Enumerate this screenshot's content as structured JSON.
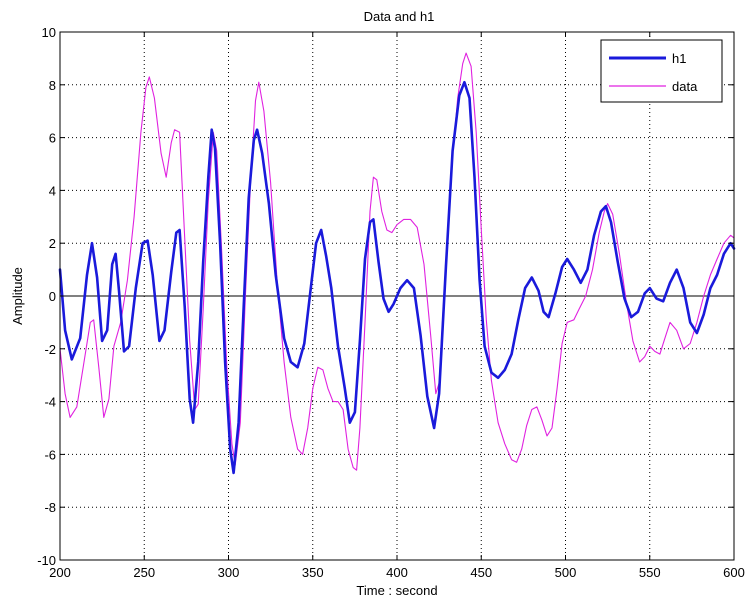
{
  "chart_data": {
    "type": "line",
    "title": "Data and h1",
    "xlabel": "Time : second",
    "ylabel": "Amplitude",
    "xlim": [
      200,
      600
    ],
    "ylim": [
      -10,
      10
    ],
    "xticks": [
      200,
      250,
      300,
      350,
      400,
      450,
      500,
      550,
      600
    ],
    "yticks": [
      -10,
      -8,
      -6,
      -4,
      -2,
      0,
      2,
      4,
      6,
      8,
      10
    ],
    "grid": true,
    "legend_position": "top-right",
    "zero_line": true,
    "series": [
      {
        "name": "h1",
        "color": "#1a1adb",
        "points": [
          [
            200,
            1.0
          ],
          [
            203,
            -1.3
          ],
          [
            207,
            -2.4
          ],
          [
            212,
            -1.6
          ],
          [
            216,
            0.8
          ],
          [
            219,
            2.0
          ],
          [
            222,
            0.7
          ],
          [
            225,
            -1.7
          ],
          [
            228,
            -1.3
          ],
          [
            231,
            1.2
          ],
          [
            233,
            1.6
          ],
          [
            235,
            0.2
          ],
          [
            238,
            -2.1
          ],
          [
            241,
            -1.9
          ],
          [
            245,
            0.3
          ],
          [
            249,
            2.0
          ],
          [
            252,
            2.1
          ],
          [
            255,
            0.8
          ],
          [
            259,
            -1.7
          ],
          [
            262,
            -1.3
          ],
          [
            266,
            0.9
          ],
          [
            269,
            2.4
          ],
          [
            271,
            2.5
          ],
          [
            274,
            -0.4
          ],
          [
            277,
            -3.9
          ],
          [
            279,
            -4.8
          ],
          [
            282,
            -2.5
          ],
          [
            285,
            1.3
          ],
          [
            288,
            4.5
          ],
          [
            290,
            6.3
          ],
          [
            292,
            5.6
          ],
          [
            295,
            2.0
          ],
          [
            298,
            -2.5
          ],
          [
            301,
            -5.8
          ],
          [
            303,
            -6.7
          ],
          [
            306,
            -4.8
          ],
          [
            309,
            -0.4
          ],
          [
            312,
            3.7
          ],
          [
            315,
            5.9
          ],
          [
            317,
            6.3
          ],
          [
            320,
            5.4
          ],
          [
            324,
            3.5
          ],
          [
            328,
            0.8
          ],
          [
            333,
            -1.6
          ],
          [
            337,
            -2.5
          ],
          [
            341,
            -2.7
          ],
          [
            345,
            -1.8
          ],
          [
            349,
            0.4
          ],
          [
            352,
            2.0
          ],
          [
            355,
            2.5
          ],
          [
            358,
            1.5
          ],
          [
            361,
            0.3
          ],
          [
            365,
            -1.9
          ],
          [
            369,
            -3.5
          ],
          [
            372,
            -4.8
          ],
          [
            375,
            -4.4
          ],
          [
            378,
            -1.7
          ],
          [
            381,
            1.4
          ],
          [
            384,
            2.8
          ],
          [
            386,
            2.9
          ],
          [
            389,
            1.3
          ],
          [
            392,
            -0.1
          ],
          [
            395,
            -0.6
          ],
          [
            398,
            -0.3
          ],
          [
            402,
            0.3
          ],
          [
            406,
            0.6
          ],
          [
            410,
            0.3
          ],
          [
            414,
            -1.5
          ],
          [
            418,
            -3.8
          ],
          [
            422,
            -5.0
          ],
          [
            425,
            -3.7
          ],
          [
            429,
            1.1
          ],
          [
            433,
            5.5
          ],
          [
            437,
            7.6
          ],
          [
            440,
            8.1
          ],
          [
            443,
            7.5
          ],
          [
            446,
            4.5
          ],
          [
            449,
            0.6
          ],
          [
            452,
            -1.9
          ],
          [
            456,
            -2.9
          ],
          [
            460,
            -3.1
          ],
          [
            464,
            -2.8
          ],
          [
            468,
            -2.2
          ],
          [
            472,
            -0.9
          ],
          [
            476,
            0.3
          ],
          [
            480,
            0.7
          ],
          [
            484,
            0.2
          ],
          [
            487,
            -0.6
          ],
          [
            490,
            -0.8
          ],
          [
            494,
            0.1
          ],
          [
            498,
            1.1
          ],
          [
            501,
            1.4
          ],
          [
            505,
            1.0
          ],
          [
            509,
            0.5
          ],
          [
            513,
            1.0
          ],
          [
            517,
            2.3
          ],
          [
            521,
            3.2
          ],
          [
            524,
            3.4
          ],
          [
            527,
            2.8
          ],
          [
            531,
            1.3
          ],
          [
            535,
            -0.1
          ],
          [
            539,
            -0.8
          ],
          [
            543,
            -0.6
          ],
          [
            547,
            0.1
          ],
          [
            550,
            0.3
          ],
          [
            554,
            -0.1
          ],
          [
            558,
            -0.2
          ],
          [
            562,
            0.5
          ],
          [
            566,
            1.0
          ],
          [
            570,
            0.3
          ],
          [
            574,
            -1.0
          ],
          [
            578,
            -1.4
          ],
          [
            582,
            -0.7
          ],
          [
            586,
            0.3
          ],
          [
            590,
            0.8
          ],
          [
            594,
            1.6
          ],
          [
            598,
            2.0
          ],
          [
            600,
            1.8
          ]
        ]
      },
      {
        "name": "data",
        "color": "#e022e0",
        "points": [
          [
            200,
            -2.0
          ],
          [
            203,
            -3.7
          ],
          [
            206,
            -4.6
          ],
          [
            210,
            -4.2
          ],
          [
            214,
            -2.6
          ],
          [
            218,
            -1.0
          ],
          [
            220,
            -0.9
          ],
          [
            223,
            -2.7
          ],
          [
            226,
            -4.6
          ],
          [
            229,
            -3.9
          ],
          [
            232,
            -1.9
          ],
          [
            236,
            -1.0
          ],
          [
            240,
            0.6
          ],
          [
            244,
            3.0
          ],
          [
            248,
            6.2
          ],
          [
            251,
            7.9
          ],
          [
            253,
            8.3
          ],
          [
            256,
            7.5
          ],
          [
            260,
            5.4
          ],
          [
            263,
            4.5
          ],
          [
            266,
            5.8
          ],
          [
            268,
            6.3
          ],
          [
            271,
            6.2
          ],
          [
            274,
            2.2
          ],
          [
            277,
            -1.7
          ],
          [
            280,
            -4.3
          ],
          [
            282,
            -4.1
          ],
          [
            285,
            -0.5
          ],
          [
            288,
            3.6
          ],
          [
            291,
            6.2
          ],
          [
            293,
            5.5
          ],
          [
            296,
            1.6
          ],
          [
            299,
            -2.7
          ],
          [
            302,
            -5.6
          ],
          [
            304,
            -6.4
          ],
          [
            307,
            -4.8
          ],
          [
            310,
            0.0
          ],
          [
            313,
            4.2
          ],
          [
            316,
            7.4
          ],
          [
            318,
            8.1
          ],
          [
            321,
            7.0
          ],
          [
            325,
            4.3
          ],
          [
            329,
            0.4
          ],
          [
            333,
            -2.5
          ],
          [
            337,
            -4.6
          ],
          [
            341,
            -5.8
          ],
          [
            344,
            -6.0
          ],
          [
            347,
            -5.0
          ],
          [
            350,
            -3.5
          ],
          [
            353,
            -2.7
          ],
          [
            356,
            -2.8
          ],
          [
            359,
            -3.5
          ],
          [
            362,
            -4.0
          ],
          [
            365,
            -4.0
          ],
          [
            368,
            -4.3
          ],
          [
            371,
            -5.8
          ],
          [
            374,
            -6.5
          ],
          [
            376,
            -6.6
          ],
          [
            378,
            -5.0
          ],
          [
            381,
            -1.0
          ],
          [
            384,
            3.2
          ],
          [
            386,
            4.5
          ],
          [
            388,
            4.4
          ],
          [
            391,
            3.2
          ],
          [
            394,
            2.5
          ],
          [
            397,
            2.4
          ],
          [
            400,
            2.7
          ],
          [
            404,
            2.9
          ],
          [
            408,
            2.9
          ],
          [
            412,
            2.6
          ],
          [
            416,
            1.2
          ],
          [
            420,
            -1.5
          ],
          [
            423,
            -3.7
          ],
          [
            425,
            -3.3
          ],
          [
            428,
            0.2
          ],
          [
            432,
            4.6
          ],
          [
            436,
            7.5
          ],
          [
            439,
            8.8
          ],
          [
            441,
            9.2
          ],
          [
            444,
            8.7
          ],
          [
            447,
            6.2
          ],
          [
            450,
            2.5
          ],
          [
            453,
            -0.9
          ],
          [
            456,
            -3.2
          ],
          [
            460,
            -4.8
          ],
          [
            464,
            -5.6
          ],
          [
            468,
            -6.2
          ],
          [
            471,
            -6.3
          ],
          [
            474,
            -5.8
          ],
          [
            477,
            -4.9
          ],
          [
            480,
            -4.3
          ],
          [
            483,
            -4.2
          ],
          [
            486,
            -4.7
          ],
          [
            489,
            -5.3
          ],
          [
            492,
            -5.0
          ],
          [
            495,
            -3.5
          ],
          [
            498,
            -1.8
          ],
          [
            501,
            -1.0
          ],
          [
            505,
            -0.9
          ],
          [
            508,
            -0.5
          ],
          [
            512,
            0.0
          ],
          [
            516,
            1.0
          ],
          [
            520,
            2.4
          ],
          [
            523,
            3.2
          ],
          [
            525,
            3.5
          ],
          [
            528,
            3.1
          ],
          [
            532,
            1.6
          ],
          [
            536,
            -0.2
          ],
          [
            540,
            -1.7
          ],
          [
            544,
            -2.5
          ],
          [
            547,
            -2.3
          ],
          [
            550,
            -1.9
          ],
          [
            553,
            -2.1
          ],
          [
            556,
            -2.2
          ],
          [
            559,
            -1.6
          ],
          [
            562,
            -1.0
          ],
          [
            566,
            -1.3
          ],
          [
            570,
            -2.0
          ],
          [
            574,
            -1.8
          ],
          [
            578,
            -1.0
          ],
          [
            582,
            0.0
          ],
          [
            586,
            0.8
          ],
          [
            590,
            1.4
          ],
          [
            594,
            2.0
          ],
          [
            598,
            2.3
          ],
          [
            600,
            2.2
          ]
        ]
      }
    ]
  }
}
